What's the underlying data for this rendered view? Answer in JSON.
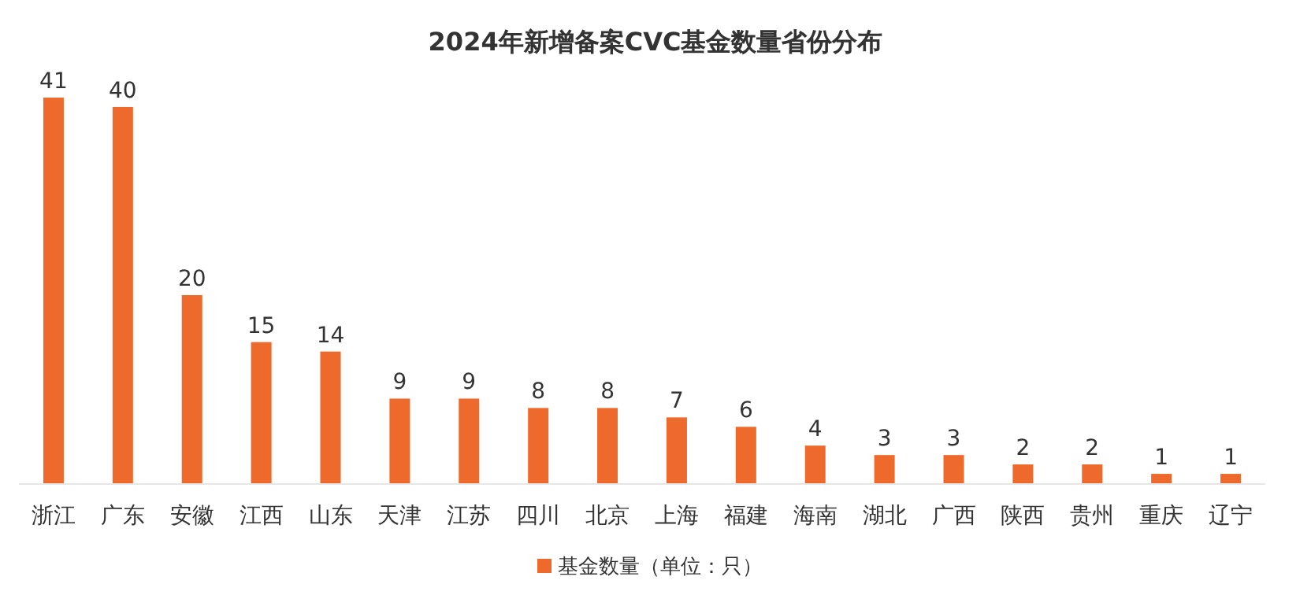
{
  "chart_data": {
    "type": "bar",
    "title": "2024年新增备案CVC基金数量省份分布",
    "categories": [
      "浙江",
      "广东",
      "安徽",
      "江西",
      "山东",
      "天津",
      "江苏",
      "四川",
      "北京",
      "上海",
      "福建",
      "海南",
      "湖北",
      "广西",
      "陕西",
      "贵州",
      "重庆",
      "辽宁"
    ],
    "series": [
      {
        "name": "基金数量（单位：只）",
        "color": "#ee6a2c",
        "values": [
          41,
          40,
          20,
          15,
          14,
          9,
          9,
          8,
          8,
          7,
          6,
          4,
          3,
          3,
          2,
          2,
          1,
          1
        ]
      }
    ],
    "data_labels": true,
    "legend": "bottom"
  }
}
